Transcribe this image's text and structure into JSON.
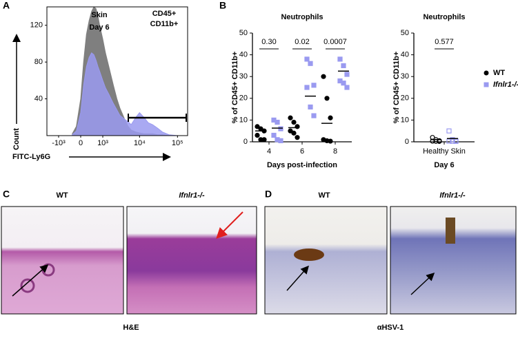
{
  "panel_labels": [
    "A",
    "B",
    "C",
    "D"
  ],
  "chart_data": [
    {
      "type": "area",
      "annotations": [
        "Skin",
        "Day 6",
        "CD45+",
        "CD11b+"
      ],
      "ylabel": "Count",
      "xlabel": "FITC-Ly6G",
      "x": [
        -300,
        -150,
        0,
        100,
        200,
        300,
        400,
        500,
        600,
        700,
        800,
        1000,
        1200,
        1500,
        2000,
        2500,
        3000,
        4000,
        5000,
        6000,
        8000,
        10000,
        13000,
        17000,
        22000,
        30000,
        40000,
        60000,
        100000
      ],
      "series": [
        {
          "color": "#7f7f7f",
          "values": [
            2,
            10,
            40,
            80,
            110,
            125,
            135,
            140,
            138,
            130,
            120,
            105,
            90,
            75,
            55,
            40,
            30,
            18,
            10,
            6,
            4,
            3,
            2,
            2,
            2,
            1,
            1,
            0,
            0
          ]
        },
        {
          "color": "#9a9af0",
          "values": [
            1,
            5,
            25,
            55,
            75,
            85,
            90,
            88,
            82,
            75,
            70,
            60,
            52,
            45,
            35,
            28,
            22,
            18,
            15,
            12,
            20,
            25,
            20,
            14,
            12,
            8,
            4,
            1,
            0
          ]
        }
      ],
      "ylim": [
        0,
        140
      ],
      "yticks": [
        40,
        80,
        120
      ],
      "xticks": [
        {
          "value": -1000,
          "label": "-10³"
        },
        0,
        {
          "value": 1000,
          "label": "10³"
        },
        {
          "value": 10000,
          "label": "10⁴"
        },
        {
          "value": 100000,
          "label": "10⁵"
        }
      ]
    },
    {
      "type": "strip",
      "title": "Neutrophils",
      "ylabel": "% of CD45+ CD11b+",
      "xlabel": "Days post-infection",
      "categories": [
        "4",
        "6",
        "8"
      ],
      "annotations": [
        "0.30",
        "0.02",
        "0.0007"
      ],
      "series": [
        {
          "name": "WT",
          "color": "#000000",
          "values": [
            [
              7,
              6,
              5,
              3,
              1,
              1
            ],
            [
              11,
              9,
              7,
              5,
              4,
              2
            ],
            [
              30,
              20,
              11,
              1,
              0.5,
              0.3
            ]
          ],
          "means": [
            5,
            6.5,
            8.5
          ]
        },
        {
          "name": "Ifnlr1-/-",
          "color": "#9a9af0",
          "values": [
            [
              10,
              9,
              6,
              3,
              1,
              0.5
            ],
            [
              38,
              36,
              26,
              25,
              16,
              12
            ],
            [
              38,
              35,
              31,
              28,
              27,
              25
            ]
          ],
          "means": [
            6.3,
            21,
            32.5
          ]
        }
      ],
      "ylim": [
        0,
        50
      ],
      "yticks": [
        0,
        10,
        20,
        30,
        40,
        50
      ]
    },
    {
      "type": "strip",
      "title": "Neutrophils",
      "ylabel": "% of CD45+ CD11b+",
      "xlabel": "Day 6",
      "categories": [
        "Healthy Skin"
      ],
      "annotations": [
        "0.577"
      ],
      "open": true,
      "series": [
        {
          "name": "WT",
          "color": "#000000",
          "values": [
            [
              2,
              1,
              0.5,
              0.3,
              0.2,
              0.2
            ]
          ],
          "means": [
            1
          ]
        },
        {
          "name": "Ifnlr1-/-",
          "color": "#9a9af0",
          "values": [
            [
              5,
              1,
              0.5,
              0.3,
              0.2,
              0.2
            ]
          ],
          "means": [
            1.5
          ]
        }
      ],
      "ylim": [
        0,
        50
      ],
      "yticks": [
        0,
        10,
        20,
        30,
        40,
        50
      ]
    }
  ],
  "images": {
    "C": {
      "labels": [
        "WT",
        "Ifnlr1-/-"
      ],
      "caption": "H&E"
    },
    "D": {
      "labels": [
        "WT",
        "Ifnlr1-/-"
      ],
      "caption": "αHSV-1"
    }
  }
}
